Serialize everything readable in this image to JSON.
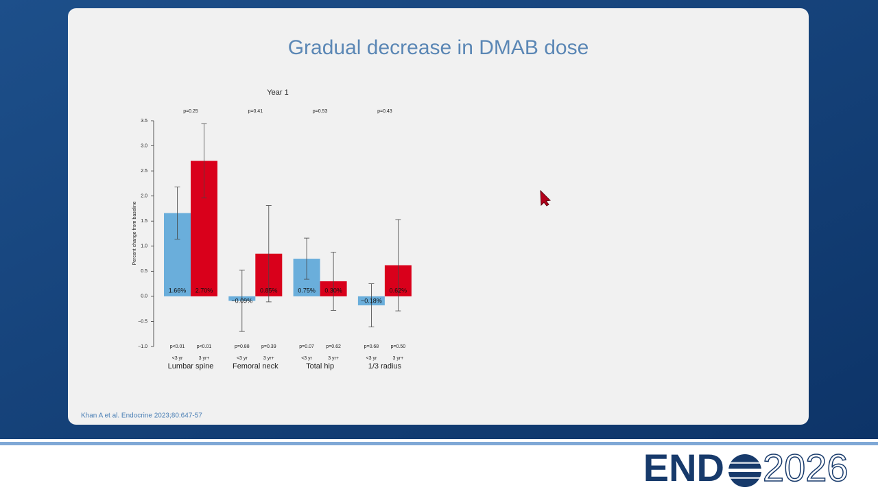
{
  "slide": {
    "title": "Gradual decrease in DMAB dose",
    "citation": "Khan A et al. Endocrine 2023;80:647-57",
    "logo_left": "END",
    "logo_right": "2026"
  },
  "chart_data": {
    "type": "bar",
    "title": "Year 1",
    "y_label": "Percent change from baseline",
    "categories": [
      "Lumbar spine",
      "Femoral neck",
      "Total hip",
      "1/3 radius"
    ],
    "group_p_values": [
      "p=0.25",
      "p=0.41",
      "p=0.53",
      "p=0.43"
    ],
    "series": [
      {
        "name": "<3 yr",
        "color": "#6aaedb",
        "values": [
          1.66,
          -0.09,
          0.75,
          -0.18
        ],
        "value_labels": [
          "1.66%",
          "−0.09%",
          "0.75%",
          "−0.18%"
        ],
        "errors": [
          0.52,
          0.61,
          0.41,
          0.43
        ],
        "p_values": [
          "p<0.01",
          "p=0.88",
          "p=0.07",
          "p=0.68"
        ]
      },
      {
        "name": "3 yr+",
        "color": "#d9001b",
        "values": [
          2.7,
          0.85,
          0.3,
          0.62
        ],
        "value_labels": [
          "2.70%",
          "0.85%",
          "0.30%",
          "0.62%"
        ],
        "errors": [
          0.74,
          0.96,
          0.58,
          0.91
        ],
        "p_values": [
          "p<0.01",
          "p=0.39",
          "p=0.62",
          "p=0.50"
        ]
      }
    ],
    "ylim": [
      -1.0,
      3.5
    ],
    "yticks": [
      {
        "value": -1,
        "label": "−1.0"
      },
      {
        "value": -0.5,
        "label": "−0.5"
      },
      {
        "value": 0,
        "label": "0.0"
      },
      0.5,
      {
        "value": 1,
        "label": "1.0"
      },
      1.5,
      {
        "value": 2,
        "label": "2.0"
      },
      2.5,
      {
        "value": 3,
        "label": "3.0"
      },
      3.5
    ]
  }
}
